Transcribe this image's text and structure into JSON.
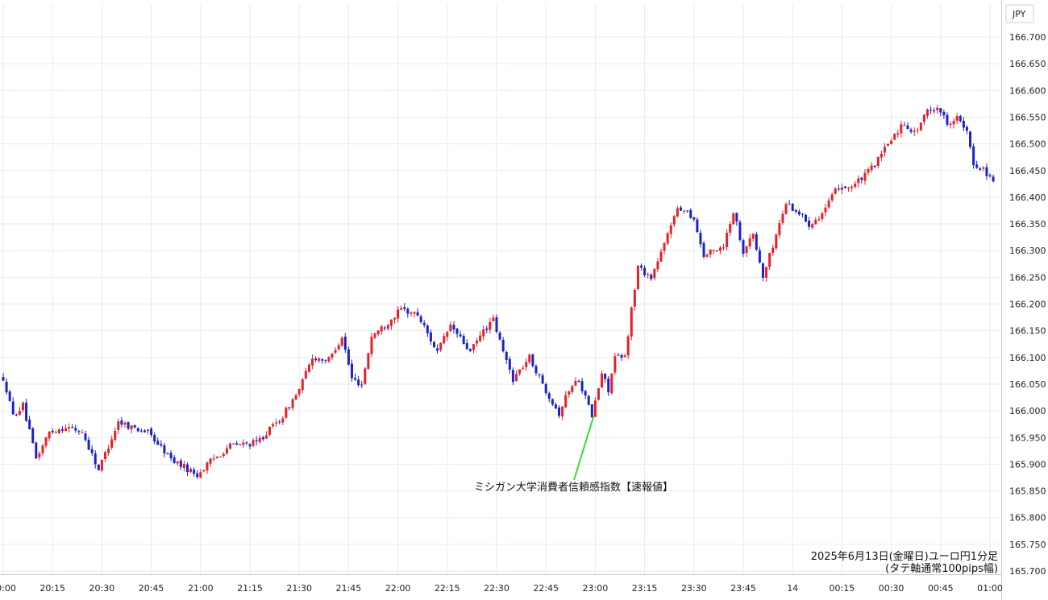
{
  "chart_data": {
    "type": "candlestick",
    "currency_label": "JPY",
    "colors": {
      "up": "#e8202a",
      "down": "#1a22c8",
      "grid": "#e6ebef",
      "annotation_line": "#33dd33"
    },
    "grid": true,
    "y_axis": {
      "position": "right",
      "ylim": [
        165.69,
        166.71
      ],
      "ticks": [
        "166.700",
        "166.650",
        "166.600",
        "166.550",
        "166.500",
        "166.450",
        "166.400",
        "166.350",
        "166.300",
        "166.250",
        "166.200",
        "166.150",
        "166.100",
        "166.050",
        "166.000",
        "165.950",
        "165.900",
        "165.850",
        "165.800",
        "165.750",
        "165.700"
      ]
    },
    "x_axis": {
      "ticks": [
        {
          "label": "20:00",
          "minute": 0
        },
        {
          "label": "20:15",
          "minute": 15
        },
        {
          "label": "20:30",
          "minute": 30
        },
        {
          "label": "20:45",
          "minute": 45
        },
        {
          "label": "21:00",
          "minute": 60
        },
        {
          "label": "21:15",
          "minute": 75
        },
        {
          "label": "21:30",
          "minute": 90
        },
        {
          "label": "21:45",
          "minute": 105
        },
        {
          "label": "22:00",
          "minute": 120
        },
        {
          "label": "22:15",
          "minute": 135
        },
        {
          "label": "22:30",
          "minute": 150
        },
        {
          "label": "22:45",
          "minute": 165
        },
        {
          "label": "23:00",
          "minute": 180
        },
        {
          "label": "23:15",
          "minute": 195
        },
        {
          "label": "23:30",
          "minute": 210
        },
        {
          "label": "23:45",
          "minute": 225
        },
        {
          "label": "14",
          "minute": 240
        },
        {
          "label": "00:15",
          "minute": 255
        },
        {
          "label": "00:30",
          "minute": 270
        },
        {
          "label": "00:45",
          "minute": 285
        },
        {
          "label": "01:00",
          "minute": 300
        }
      ]
    },
    "price_path": [
      {
        "t": 0,
        "p": 166.065
      },
      {
        "t": 2,
        "p": 166.04
      },
      {
        "t": 4,
        "p": 165.99
      },
      {
        "t": 7,
        "p": 166.01
      },
      {
        "t": 11,
        "p": 165.91
      },
      {
        "t": 15,
        "p": 165.96
      },
      {
        "t": 20,
        "p": 165.97
      },
      {
        "t": 25,
        "p": 165.96
      },
      {
        "t": 30,
        "p": 165.89
      },
      {
        "t": 36,
        "p": 165.98
      },
      {
        "t": 40,
        "p": 165.97
      },
      {
        "t": 45,
        "p": 165.96
      },
      {
        "t": 52,
        "p": 165.91
      },
      {
        "t": 60,
        "p": 165.88
      },
      {
        "t": 64,
        "p": 165.905
      },
      {
        "t": 70,
        "p": 165.935
      },
      {
        "t": 78,
        "p": 165.94
      },
      {
        "t": 86,
        "p": 165.99
      },
      {
        "t": 91,
        "p": 166.04
      },
      {
        "t": 95,
        "p": 166.1
      },
      {
        "t": 100,
        "p": 166.095
      },
      {
        "t": 104,
        "p": 166.14
      },
      {
        "t": 107,
        "p": 166.06
      },
      {
        "t": 110,
        "p": 166.05
      },
      {
        "t": 113,
        "p": 166.14
      },
      {
        "t": 117,
        "p": 166.16
      },
      {
        "t": 122,
        "p": 166.19
      },
      {
        "t": 127,
        "p": 166.18
      },
      {
        "t": 133,
        "p": 166.11
      },
      {
        "t": 137,
        "p": 166.16
      },
      {
        "t": 143,
        "p": 166.11
      },
      {
        "t": 147,
        "p": 166.15
      },
      {
        "t": 150,
        "p": 166.17
      },
      {
        "t": 153,
        "p": 166.11
      },
      {
        "t": 156,
        "p": 166.06
      },
      {
        "t": 161,
        "p": 166.1
      },
      {
        "t": 165,
        "p": 166.05
      },
      {
        "t": 170,
        "p": 165.995
      },
      {
        "t": 173,
        "p": 166.04
      },
      {
        "t": 176,
        "p": 166.06
      },
      {
        "t": 180,
        "p": 165.99
      },
      {
        "t": 183,
        "p": 166.07
      },
      {
        "t": 185,
        "p": 166.04
      },
      {
        "t": 187,
        "p": 166.1
      },
      {
        "t": 190,
        "p": 166.1
      },
      {
        "t": 192,
        "p": 166.19
      },
      {
        "t": 194,
        "p": 166.27
      },
      {
        "t": 198,
        "p": 166.25
      },
      {
        "t": 202,
        "p": 166.31
      },
      {
        "t": 205,
        "p": 166.37
      },
      {
        "t": 208,
        "p": 166.38
      },
      {
        "t": 211,
        "p": 166.36
      },
      {
        "t": 214,
        "p": 166.29
      },
      {
        "t": 217,
        "p": 166.3
      },
      {
        "t": 220,
        "p": 166.31
      },
      {
        "t": 223,
        "p": 166.375
      },
      {
        "t": 226,
        "p": 166.3
      },
      {
        "t": 229,
        "p": 166.33
      },
      {
        "t": 232,
        "p": 166.25
      },
      {
        "t": 236,
        "p": 166.33
      },
      {
        "t": 239,
        "p": 166.39
      },
      {
        "t": 243,
        "p": 166.37
      },
      {
        "t": 246,
        "p": 166.35
      },
      {
        "t": 250,
        "p": 166.37
      },
      {
        "t": 255,
        "p": 166.42
      },
      {
        "t": 259,
        "p": 166.42
      },
      {
        "t": 263,
        "p": 166.44
      },
      {
        "t": 267,
        "p": 166.47
      },
      {
        "t": 271,
        "p": 166.51
      },
      {
        "t": 275,
        "p": 166.54
      },
      {
        "t": 278,
        "p": 166.52
      },
      {
        "t": 282,
        "p": 166.56
      },
      {
        "t": 285,
        "p": 166.57
      },
      {
        "t": 288,
        "p": 166.54
      },
      {
        "t": 291,
        "p": 166.55
      },
      {
        "t": 294,
        "p": 166.52
      },
      {
        "t": 296,
        "p": 166.46
      },
      {
        "t": 299,
        "p": 166.455
      },
      {
        "t": 301,
        "p": 166.435
      }
    ],
    "annotation": {
      "label": "ミシガン大学消費者信頼感指数【速報値】",
      "minute": 180,
      "price": 165.99
    },
    "caption": {
      "line1": "2025年6月13日(金曜日)ユーロ円1分足",
      "line2": "(タテ軸通常100pips幅)"
    }
  }
}
